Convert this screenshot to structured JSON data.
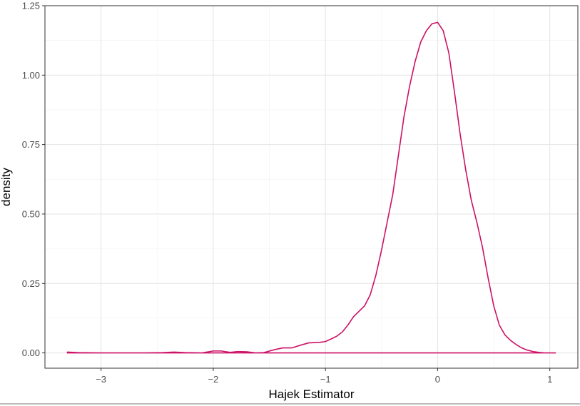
{
  "chart_data": {
    "type": "area",
    "title": "",
    "xlabel": "Hajek Estimator",
    "ylabel": "density",
    "xlim": [
      -3.5,
      1.25
    ],
    "ylim": [
      -0.055,
      1.25
    ],
    "x_ticks": [
      -3,
      -2,
      -1,
      0,
      1
    ],
    "x_tick_labels": [
      "−3",
      "−2",
      "−1",
      "0",
      "1"
    ],
    "y_ticks": [
      0,
      0.25,
      0.5,
      0.75,
      1.0,
      1.25
    ],
    "y_tick_labels": [
      "0.00",
      "0.25",
      "0.50",
      "0.75",
      "1.00",
      "1.25"
    ],
    "grid": true,
    "legend": "none",
    "series": [
      {
        "color": "#cc1166",
        "fill": "none",
        "x": [
          -3.3,
          -3.2,
          -3.0,
          -2.8,
          -2.6,
          -2.45,
          -2.35,
          -2.25,
          -2.1,
          -2.0,
          -1.93,
          -1.85,
          -1.78,
          -1.7,
          -1.62,
          -1.55,
          -1.45,
          -1.38,
          -1.3,
          -1.22,
          -1.15,
          -1.1,
          -1.05,
          -1.0,
          -0.95,
          -0.9,
          -0.85,
          -0.8,
          -0.75,
          -0.7,
          -0.65,
          -0.6,
          -0.55,
          -0.5,
          -0.45,
          -0.4,
          -0.35,
          -0.3,
          -0.25,
          -0.2,
          -0.15,
          -0.1,
          -0.05,
          0.0,
          0.05,
          0.1,
          0.15,
          0.2,
          0.25,
          0.3,
          0.35,
          0.4,
          0.45,
          0.5,
          0.55,
          0.6,
          0.65,
          0.7,
          0.75,
          0.8,
          0.85,
          0.9,
          0.95,
          1.0,
          1.05
        ],
        "y": [
          0.003,
          0.001,
          0.0,
          0.0,
          0.0,
          0.001,
          0.003,
          0.001,
          0.0,
          0.007,
          0.007,
          0.002,
          0.005,
          0.004,
          0.0,
          0.001,
          0.012,
          0.018,
          0.018,
          0.028,
          0.036,
          0.037,
          0.038,
          0.041,
          0.05,
          0.06,
          0.075,
          0.1,
          0.13,
          0.15,
          0.17,
          0.21,
          0.28,
          0.37,
          0.47,
          0.57,
          0.71,
          0.85,
          0.96,
          1.05,
          1.12,
          1.16,
          1.185,
          1.19,
          1.16,
          1.08,
          0.94,
          0.79,
          0.66,
          0.55,
          0.47,
          0.38,
          0.27,
          0.17,
          0.1,
          0.065,
          0.045,
          0.03,
          0.018,
          0.01,
          0.005,
          0.002,
          0.0,
          0.0,
          0.0
        ]
      }
    ]
  }
}
